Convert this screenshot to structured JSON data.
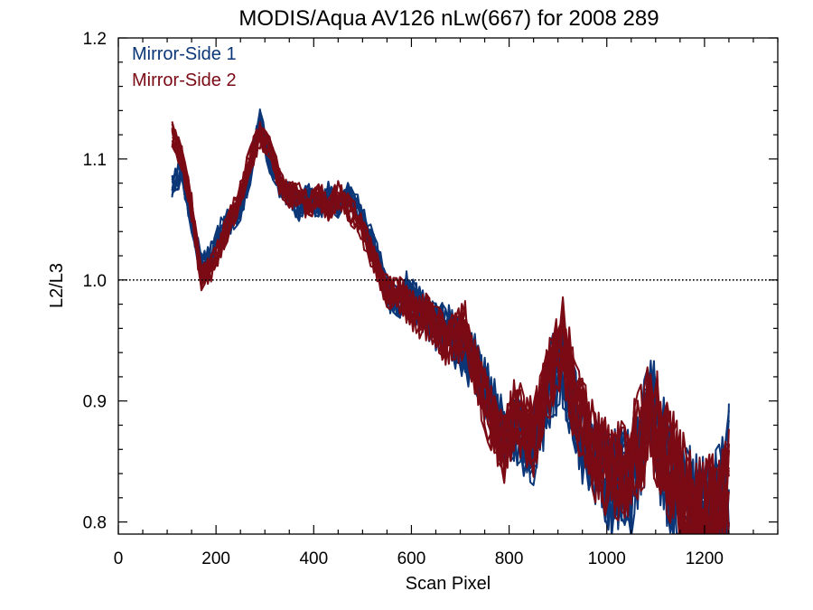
{
  "chart_data": {
    "type": "line",
    "title": "MODIS/Aqua AV126 nLw(667) for 2008 289",
    "xlabel": "Scan Pixel",
    "ylabel": "L2/L3",
    "xlim": [
      0,
      1350
    ],
    "ylim": [
      0.79,
      1.2
    ],
    "x_ticks": [
      0,
      200,
      400,
      600,
      800,
      1000,
      1200
    ],
    "x_tick_labels": [
      "0",
      "200",
      "400",
      "600",
      "800",
      "1000",
      "1200"
    ],
    "y_ticks": [
      0.8,
      0.9,
      1.0,
      1.1,
      1.2
    ],
    "y_tick_labels": [
      "0.8",
      "0.9",
      "1.0",
      "1.1",
      "1.2"
    ],
    "reference_line": {
      "y": 1.0,
      "style": "dotted"
    },
    "legend_position": "top-left",
    "colors": {
      "mirror_side_1": "#0b3677",
      "mirror_side_2": "#7a0a14"
    },
    "series": [
      {
        "name": "Mirror-Side 1",
        "color": "#0b3677",
        "x": [
          110,
          130,
          150,
          170,
          190,
          210,
          230,
          250,
          270,
          290,
          310,
          330,
          350,
          370,
          390,
          410,
          430,
          450,
          470,
          490,
          510,
          530,
          550,
          570,
          590,
          610,
          630,
          650,
          670,
          690,
          710,
          730,
          750,
          770,
          790,
          810,
          830,
          850,
          870,
          890,
          910,
          930,
          950,
          970,
          990,
          1010,
          1030,
          1050,
          1070,
          1090,
          1110,
          1130,
          1150,
          1170,
          1190,
          1210,
          1230,
          1250
        ],
        "values": [
          1.08,
          1.09,
          1.05,
          1.01,
          1.02,
          1.04,
          1.05,
          1.06,
          1.09,
          1.13,
          1.1,
          1.08,
          1.07,
          1.06,
          1.07,
          1.06,
          1.07,
          1.06,
          1.07,
          1.06,
          1.04,
          1.02,
          0.99,
          0.98,
          0.99,
          0.98,
          0.97,
          0.96,
          0.96,
          0.95,
          0.94,
          0.93,
          0.91,
          0.89,
          0.87,
          0.88,
          0.87,
          0.86,
          0.89,
          0.92,
          0.93,
          0.9,
          0.87,
          0.86,
          0.84,
          0.83,
          0.84,
          0.83,
          0.86,
          0.9,
          0.86,
          0.84,
          0.82,
          0.81,
          0.8,
          0.8,
          0.81,
          0.84
        ]
      },
      {
        "name": "Mirror-Side 2",
        "color": "#7a0a14",
        "x": [
          110,
          130,
          150,
          170,
          190,
          210,
          230,
          250,
          270,
          290,
          310,
          330,
          350,
          370,
          390,
          410,
          430,
          450,
          470,
          490,
          510,
          530,
          550,
          570,
          590,
          610,
          630,
          650,
          670,
          690,
          710,
          730,
          750,
          770,
          790,
          810,
          830,
          850,
          870,
          890,
          910,
          930,
          950,
          970,
          990,
          1010,
          1030,
          1050,
          1070,
          1090,
          1110,
          1130,
          1150,
          1170,
          1190,
          1210,
          1230,
          1250
        ],
        "values": [
          1.12,
          1.1,
          1.06,
          1.0,
          1.01,
          1.03,
          1.05,
          1.07,
          1.1,
          1.12,
          1.11,
          1.08,
          1.07,
          1.07,
          1.06,
          1.07,
          1.06,
          1.07,
          1.06,
          1.05,
          1.03,
          1.01,
          0.99,
          0.99,
          0.98,
          0.97,
          0.97,
          0.96,
          0.95,
          0.95,
          0.96,
          0.93,
          0.9,
          0.88,
          0.86,
          0.89,
          0.88,
          0.87,
          0.9,
          0.93,
          0.95,
          0.91,
          0.88,
          0.86,
          0.85,
          0.84,
          0.84,
          0.85,
          0.87,
          0.89,
          0.87,
          0.85,
          0.83,
          0.81,
          0.8,
          0.8,
          0.8,
          0.82
        ]
      }
    ]
  }
}
